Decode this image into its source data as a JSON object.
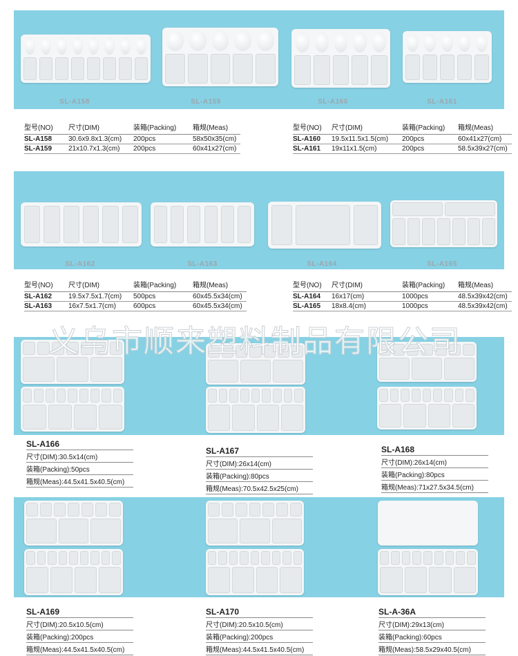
{
  "colors": {
    "band": "#87d1e4",
    "label": "#9aa7ad"
  },
  "watermark": "义乌市顺来塑料制品有限公司",
  "headers": {
    "no": "型号(NO)",
    "dim": "尺寸(DIM)",
    "packing": "装箱(Packing)",
    "meas": "箱规(Meas)"
  },
  "section1": {
    "labels": [
      "SL-A158",
      "SL-A159",
      "SL-A160",
      "SL-A161"
    ],
    "left": [
      {
        "no": "SL-A158",
        "dim": "30.6x9.8x1.3(cm)",
        "packing": "200pcs",
        "meas": "58x50x35(cm)"
      },
      {
        "no": "SL-A159",
        "dim": "21x10.7x1.3(cm)",
        "packing": "200pcs",
        "meas": "60x41x27(cm)"
      }
    ],
    "right": [
      {
        "no": "SL-A160",
        "dim": "19.5x11.5x1.5(cm)",
        "packing": "200pcs",
        "meas": "60x41x27(cm)"
      },
      {
        "no": "SL-A161",
        "dim": "19x11x1.5(cm)",
        "packing": "200pcs",
        "meas": "58.5x39x27(cm)"
      }
    ]
  },
  "section2": {
    "labels": [
      "SL-A162",
      "SL-A163",
      "SL-A164",
      "SL-A165"
    ],
    "left": [
      {
        "no": "SL-A162",
        "dim": "19.5x7.5x1.7(cm)",
        "packing": "500pcs",
        "meas": "60x45.5x34(cm)"
      },
      {
        "no": "SL-A163",
        "dim": "16x7.5x1.7(cm)",
        "packing": "600pcs",
        "meas": "60x45.5x34(cm)"
      }
    ],
    "right": [
      {
        "no": "SL-A164",
        "dim": "16x17(cm)",
        "packing": "1000pcs",
        "meas": "48.5x39x42(cm)"
      },
      {
        "no": "SL-A165",
        "dim": "18x8.4(cm)",
        "packing": "1000pcs",
        "meas": "48.5x39x42(cm)"
      }
    ]
  },
  "cards": [
    {
      "no": "SL-A166",
      "dim": "尺寸(DIM):30.5x14(cm)",
      "packing": "装箱(Packing):50pcs",
      "meas": "箱规(Meas):44.5x41.5x40.5(cm)"
    },
    {
      "no": "SL-A167",
      "dim": "尺寸(DIM):26x14(cm)",
      "packing": "装箱(Packing):80pcs",
      "meas": "箱规(Meas):70.5x42.5x25(cm)"
    },
    {
      "no": "SL-A168",
      "dim": "尺寸(DIM):26x14(cm)",
      "packing": "装箱(Packing):80pcs",
      "meas": "箱规(Meas):71x27.5x34.5(cm)"
    },
    {
      "no": "SL-A169",
      "dim": "尺寸(DIM):20.5x10.5(cm)",
      "packing": "装箱(Packing):200pcs",
      "meas": "箱规(Meas):44.5x41.5x40.5(cm)"
    },
    {
      "no": "SL-A170",
      "dim": "尺寸(DIM):20.5x10.5(cm)",
      "packing": "装箱(Packing):200pcs",
      "meas": "箱规(Meas):44.5x41.5x40.5(cm)"
    },
    {
      "no": "SL-A-36A",
      "dim": "尺寸(DIM):29x13(cm)",
      "packing": "装箱(Packing):60pcs",
      "meas": "箱规(Meas):58.5x29x40.5(cm)"
    }
  ]
}
